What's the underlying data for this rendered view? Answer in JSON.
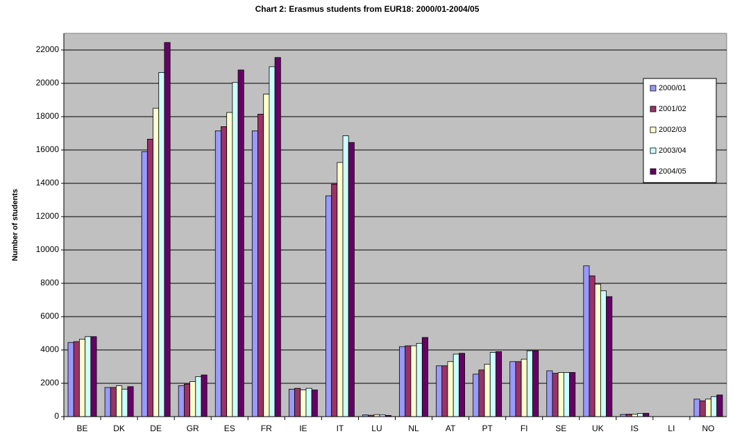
{
  "chart_data": {
    "type": "bar",
    "title": "Chart 2: Erasmus students from EUR18: 2000/01-2004/05",
    "y_label": "Number of students",
    "categories": [
      "BE",
      "DK",
      "DE",
      "GR",
      "ES",
      "FR",
      "IE",
      "IT",
      "LU",
      "NL",
      "AT",
      "PT",
      "FI",
      "SE",
      "UK",
      "IS",
      "LI",
      "NO"
    ],
    "series": [
      {
        "name": "2000/01",
        "color": "#9999ff",
        "values": [
          4450,
          1750,
          15900,
          1850,
          17150,
          17150,
          1650,
          13250,
          100,
          4200,
          3050,
          2550,
          3300,
          2750,
          9050,
          130,
          0,
          1050
        ]
      },
      {
        "name": "2001/02",
        "color": "#993366",
        "values": [
          4500,
          1750,
          16650,
          1950,
          17400,
          18150,
          1700,
          13950,
          80,
          4250,
          3050,
          2800,
          3300,
          2600,
          8450,
          150,
          0,
          950
        ]
      },
      {
        "name": "2002/03",
        "color": "#ffffcc",
        "values": [
          4650,
          1850,
          18500,
          2100,
          18250,
          19350,
          1600,
          15250,
          120,
          4250,
          3300,
          3150,
          3450,
          2650,
          7950,
          150,
          0,
          1050
        ]
      },
      {
        "name": "2003/04",
        "color": "#ccffff",
        "values": [
          4800,
          1650,
          20650,
          2400,
          20050,
          21000,
          1700,
          16850,
          110,
          4400,
          3750,
          3850,
          3950,
          2650,
          7550,
          190,
          0,
          1200
        ]
      },
      {
        "name": "2004/05",
        "color": "#660066",
        "values": [
          4800,
          1800,
          22450,
          2500,
          20800,
          21550,
          1600,
          16450,
          70,
          4750,
          3800,
          3900,
          3950,
          2650,
          7200,
          200,
          0,
          1300
        ]
      }
    ],
    "ylim": [
      0,
      23000
    ],
    "yticks": [
      0,
      2000,
      4000,
      6000,
      8000,
      10000,
      12000,
      14000,
      16000,
      18000,
      20000,
      22000
    ],
    "grid": true,
    "legend": "right",
    "plot_background": "#c0c0c0"
  }
}
